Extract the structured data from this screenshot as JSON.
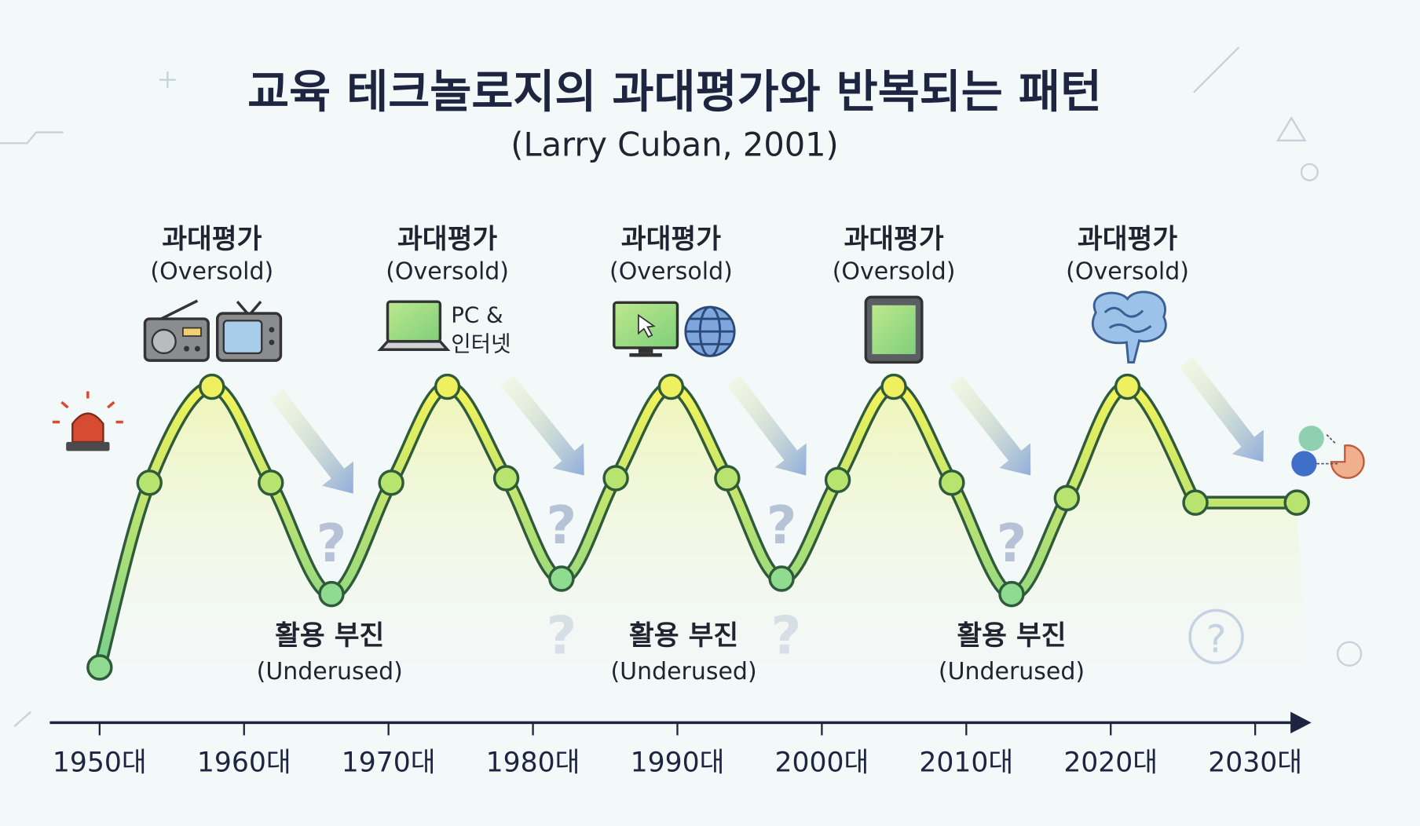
{
  "title": "교육 테크놀로지의 과대평가와 반복되는 패턴",
  "subtitle": "(Larry Cuban, 2001)",
  "oversold": [
    {
      "ko": "과대평가",
      "en": "(Oversold)",
      "icon": "radio-tv-icon"
    },
    {
      "ko": "과대평가",
      "en": "(Oversold)",
      "icon": "laptop-icon",
      "caption1": "PC &",
      "caption2": "인터넷"
    },
    {
      "ko": "과대평가",
      "en": "(Oversold)",
      "icon": "monitor-globe-icon"
    },
    {
      "ko": "과대평가",
      "en": "(Oversold)",
      "icon": "tablet-icon"
    },
    {
      "ko": "과대평가",
      "en": "(Oversold)",
      "icon": "brain-icon"
    }
  ],
  "underused": [
    {
      "ko": "활용 부진",
      "en": "(Underused)"
    },
    {
      "ko": "활용 부진",
      "en": "(Underused)"
    },
    {
      "ko": "활용 부진",
      "en": "(Underused)"
    }
  ],
  "decades": [
    "1950대",
    "1960대",
    "1970대",
    "1980대",
    "1990대",
    "2000대",
    "2010대",
    "2020대",
    "2030대"
  ],
  "question_mark": "?",
  "colors": {
    "curve_top": "#e8f060",
    "curve_bottom": "#7ed08a",
    "outline": "#2f5a3c",
    "arrow": "#8aa6d8",
    "title": "#1d2540"
  }
}
